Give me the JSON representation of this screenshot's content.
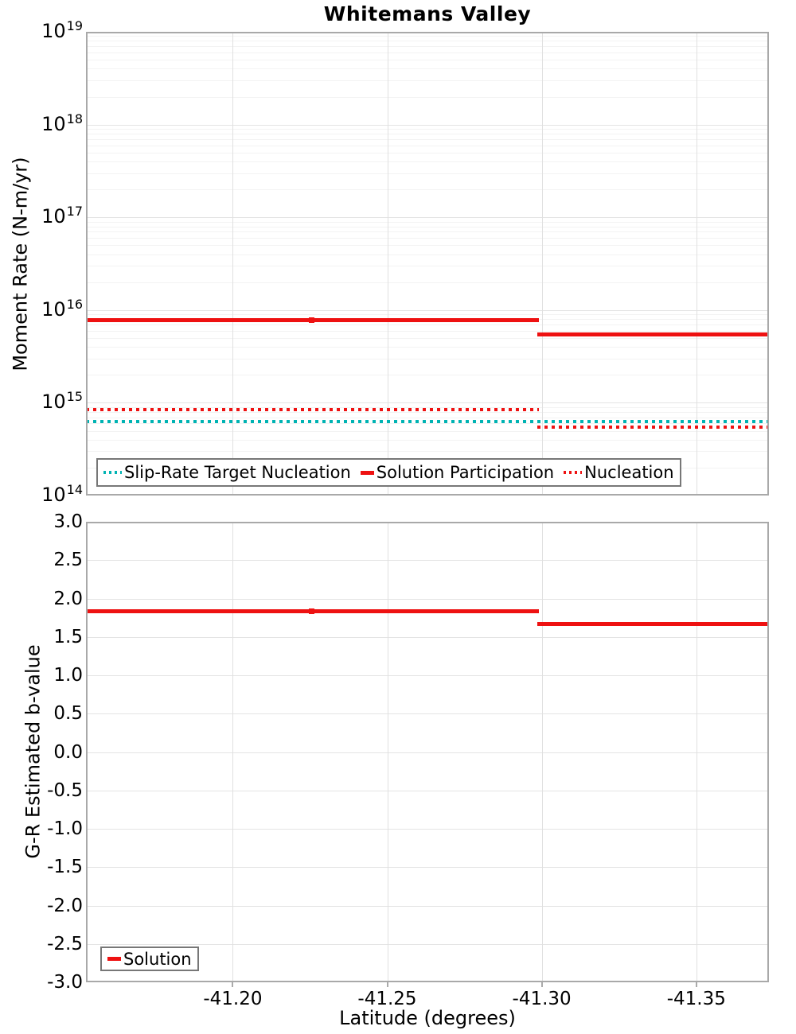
{
  "colors": {
    "solution_red": "#ee1111",
    "target_cyan": "#00b3b3",
    "grid_major": "#e4e4e4",
    "grid_minor": "#f3f3f3",
    "axis_border": "#a9a9a9"
  },
  "chart_data": [
    {
      "type": "line",
      "title": "Whitemans Valley",
      "ylabel": "Moment Rate (N-m/yr)",
      "yscale": "log",
      "ylim": [
        100000000000000.0,
        1e+19
      ],
      "ytick_exponent_base": "10",
      "ytick_exponents": [
        19,
        18,
        17,
        16,
        15,
        14
      ],
      "xlim": [
        -41.1525,
        -41.3735
      ],
      "x_reversed": true,
      "xgrid": [
        -41.2,
        -41.25,
        -41.3,
        -41.35
      ],
      "grid": true,
      "legend_location": "bottom",
      "legend": [
        {
          "label": "Slip-Rate Target Nucleation",
          "style": "dotted",
          "color": "#00b3b3"
        },
        {
          "label": "Solution Participation",
          "style": "solid",
          "color": "#ee1111"
        },
        {
          "label": "Nucleation",
          "style": "dotted",
          "color": "#ee1111"
        }
      ],
      "series": [
        {
          "name": "Slip-Rate Target Nucleation",
          "style": "dotted",
          "color": "#00b3b3",
          "segments": [
            {
              "x1": -41.1525,
              "x2": -41.3735,
              "value": 630000000000000.0
            }
          ]
        },
        {
          "name": "Solution Participation",
          "style": "solid",
          "color": "#ee1111",
          "joints": [
            -41.2255
          ],
          "segments": [
            {
              "x1": -41.1525,
              "x2": -41.299,
              "value": 7800000000000000.0
            },
            {
              "x1": -41.2985,
              "x2": -41.3735,
              "value": 5500000000000000.0
            }
          ]
        },
        {
          "name": "Nucleation",
          "style": "dotted",
          "color": "#ee1111",
          "segments": [
            {
              "x1": -41.1525,
              "x2": -41.299,
              "value": 850000000000000.0
            },
            {
              "x1": -41.2985,
              "x2": -41.3735,
              "value": 550000000000000.0
            }
          ]
        }
      ]
    },
    {
      "type": "line",
      "ylabel": "G-R Estimated b-value",
      "xlabel": "Latitude (degrees)",
      "ylim": [
        -3.0,
        3.0
      ],
      "yticks": [
        3.0,
        2.5,
        2.0,
        1.5,
        1.0,
        0.5,
        0.0,
        -0.5,
        -1.0,
        -1.5,
        -2.0,
        -2.5,
        -3.0
      ],
      "ytick_labels": [
        "3.0",
        "2.5",
        "2.0",
        "1.5",
        "1.0",
        "0.5",
        "0.0",
        "-0.5",
        "-1.0",
        "-1.5",
        "-2.0",
        "-2.5",
        "-3.0"
      ],
      "xlim": [
        -41.1525,
        -41.3735
      ],
      "x_reversed": true,
      "xticks": [
        -41.2,
        -41.25,
        -41.3,
        -41.35
      ],
      "xtick_labels": [
        "-41.20",
        "-41.25",
        "-41.30",
        "-41.35"
      ],
      "grid": true,
      "legend_location": "bottom-left",
      "legend": [
        {
          "label": "Solution",
          "style": "solid",
          "color": "#ee1111"
        }
      ],
      "series": [
        {
          "name": "Solution",
          "style": "solid",
          "color": "#ee1111",
          "joints": [
            -41.2255
          ],
          "segments": [
            {
              "x1": -41.1525,
              "x2": -41.299,
              "value": 1.83
            },
            {
              "x1": -41.2985,
              "x2": -41.3735,
              "value": 1.67
            }
          ]
        }
      ]
    }
  ]
}
